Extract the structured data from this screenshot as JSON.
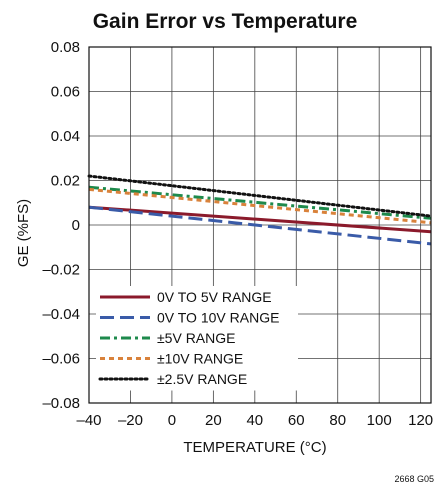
{
  "figure_code": "2668 G05",
  "chart_data": {
    "type": "line",
    "title": "Gain Error vs Temperature",
    "xlabel": "TEMPERATURE (°C)",
    "ylabel": "GE (%FS)",
    "xlim": [
      -40,
      125
    ],
    "ylim": [
      -0.08,
      0.08
    ],
    "xticks": [
      -40,
      -20,
      0,
      20,
      40,
      60,
      80,
      100,
      120
    ],
    "yticks": [
      -0.08,
      -0.06,
      -0.04,
      -0.02,
      0,
      0.02,
      0.04,
      0.06,
      0.08
    ],
    "xtick_labels": [
      "–40",
      "–20",
      "0",
      "20",
      "40",
      "60",
      "80",
      "100",
      "120"
    ],
    "ytick_labels": [
      "–0.08",
      "–0.06",
      "–0.04",
      "–0.02",
      "0",
      "0.02",
      "0.04",
      "0.06",
      "0.08"
    ],
    "grid": true,
    "legend_position": "bottom-left",
    "series": [
      {
        "name": "0V TO 5V RANGE",
        "color": "#8b1a2b",
        "style": "solid",
        "x": [
          -40,
          125
        ],
        "y": [
          0.008,
          -0.003
        ]
      },
      {
        "name": "0V TO 10V RANGE",
        "color": "#3a5ba8",
        "style": "long-dash",
        "x": [
          -40,
          125
        ],
        "y": [
          0.008,
          -0.0085
        ]
      },
      {
        "name": "±5V RANGE",
        "color": "#1e8a4c",
        "style": "dash-dot",
        "x": [
          -40,
          125
        ],
        "y": [
          0.017,
          0.003
        ]
      },
      {
        "name": "±10V RANGE",
        "color": "#d9823b",
        "style": "short-dash",
        "x": [
          -40,
          125
        ],
        "y": [
          0.016,
          0.001
        ]
      },
      {
        "name": "±2.5V RANGE",
        "color": "#111111",
        "style": "dotted",
        "x": [
          -40,
          125
        ],
        "y": [
          0.022,
          0.004
        ]
      }
    ]
  }
}
